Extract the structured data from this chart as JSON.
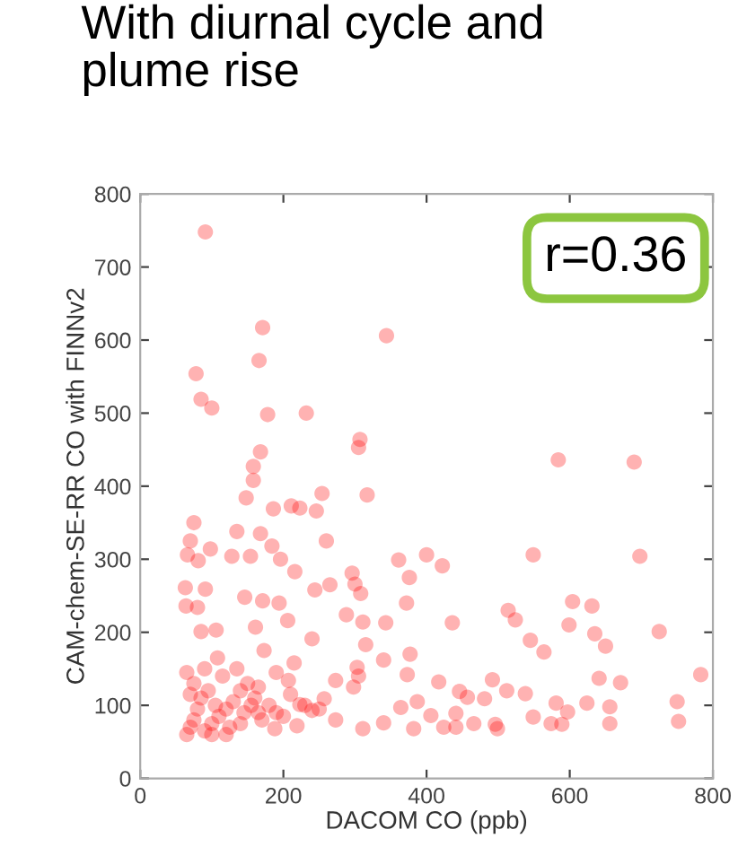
{
  "chart_data": {
    "type": "scatter",
    "title": "With diurnal cycle and\nplume rise",
    "xlabel": "DACOM CO (ppb)",
    "ylabel": "CAM-chem-SE-RR CO with FINNv2",
    "annotations": [
      "r=0.36"
    ],
    "xlim": [
      0,
      800
    ],
    "xticks": [
      0,
      200,
      400,
      600,
      800
    ],
    "ylim": [
      0,
      800
    ],
    "yticks": [
      0,
      100,
      200,
      300,
      400,
      500,
      600,
      700,
      800
    ],
    "grid": false,
    "marker": "circle",
    "series": [
      {
        "color": "#ff0000",
        "x": [
          91,
          171,
          344,
          166,
          78,
          85,
          100,
          178,
          232,
          307,
          305,
          168,
          158,
          158,
          148,
          254,
          186,
          211,
          223,
          246,
          317,
          584,
          690,
          75,
          70,
          66,
          98,
          168,
          135,
          184,
          260,
          361,
          400,
          422,
          549,
          698,
          376,
          296,
          216,
          196,
          81,
          128,
          154,
          63,
          91,
          265,
          244,
          308,
          300,
          146,
          372,
          604,
          631,
          514,
          524,
          436,
          343,
          599,
          635,
          650,
          545,
          564,
          725,
          311,
          288,
          171,
          194,
          64,
          80,
          106,
          85,
          161,
          206,
          315,
          240,
          377,
          303,
          305,
          373,
          190,
          340,
          108,
          173,
          783,
          671,
          641,
          417,
          446,
          457,
          492,
          512,
          538,
          581,
          750,
          597,
          549,
          589,
          574,
          656,
          624,
          656,
          752,
          481,
          441,
          382,
          424,
          441,
          466,
          496,
          499,
          406,
          387,
          364,
          340,
          311,
          257,
          273,
          219,
          188,
          223,
          240,
          273,
          298,
          207,
          215,
          165,
          65,
          70,
          75,
          80,
          85,
          90,
          100,
          110,
          120,
          130,
          140,
          150,
          160,
          145,
          125,
          105,
          95,
          70,
          115,
          135,
          155,
          165,
          75,
          90,
          65,
          100,
          120,
          140,
          170,
          180,
          190,
          200,
          210,
          230,
          250
        ],
        "values": [
          748,
          617,
          606,
          572,
          554,
          519,
          507,
          498,
          500,
          464,
          453,
          447,
          427,
          408,
          384,
          390,
          369,
          373,
          370,
          366,
          388,
          436,
          433,
          350,
          325,
          306,
          314,
          335,
          338,
          318,
          325,
          299,
          306,
          291,
          306,
          304,
          275,
          281,
          283,
          300,
          298,
          304,
          304,
          261,
          259,
          265,
          258,
          253,
          266,
          248,
          240,
          242,
          236,
          230,
          217,
          213,
          213,
          210,
          198,
          181,
          189,
          173,
          201,
          214,
          224,
          243,
          240,
          236,
          234,
          203,
          201,
          207,
          216,
          183,
          191,
          170,
          152,
          140,
          142,
          145,
          162,
          165,
          175,
          142,
          131,
          137,
          132,
          119,
          111,
          135,
          120,
          116,
          103,
          105,
          91,
          84,
          74,
          75,
          98,
          103,
          75,
          78,
          109,
          89,
          68,
          70,
          70,
          75,
          74,
          68,
          86,
          105,
          97,
          76,
          68,
          109,
          80,
          72,
          68,
          101,
          93,
          134,
          125,
          134,
          158,
          125,
          60,
          70,
          80,
          95,
          110,
          65,
          75,
          85,
          95,
          105,
          120,
          130,
          110,
          90,
          70,
          100,
          120,
          115,
          140,
          150,
          100,
          90,
          130,
          150,
          145,
          60,
          60,
          75,
          80,
          100,
          90,
          85,
          115,
          100,
          95
        ]
      }
    ]
  }
}
